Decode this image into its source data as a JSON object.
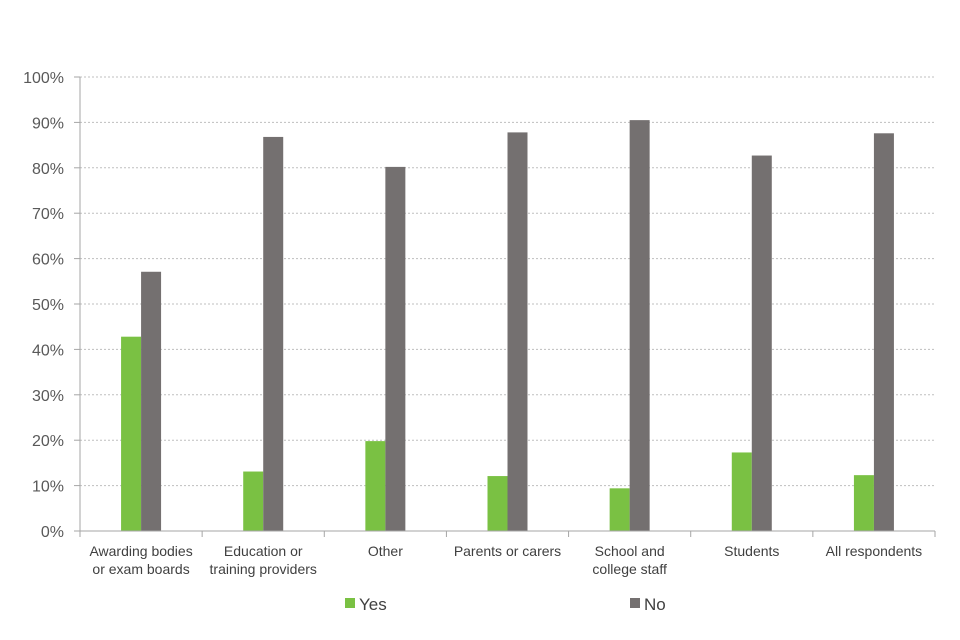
{
  "chart_data": {
    "type": "bar",
    "categories": [
      [
        "Awarding bodies",
        "or exam boards"
      ],
      [
        "Education or",
        "training providers"
      ],
      [
        "Other"
      ],
      [
        "Parents or carers"
      ],
      [
        "School and",
        "college staff"
      ],
      [
        "Students"
      ],
      [
        "All respondents"
      ]
    ],
    "series": [
      {
        "name": "Yes",
        "color": "#7ac143",
        "values": [
          42.8,
          13.1,
          19.8,
          12.1,
          9.4,
          17.3,
          12.3
        ]
      },
      {
        "name": "No",
        "color": "#747070",
        "values": [
          57.1,
          86.8,
          80.2,
          87.8,
          90.5,
          82.7,
          87.6
        ]
      }
    ],
    "ylim": [
      0,
      100
    ],
    "yticks": [
      "0%",
      "10%",
      "20%",
      "30%",
      "40%",
      "50%",
      "60%",
      "70%",
      "80%",
      "90%",
      "100%"
    ],
    "grid": true,
    "legend_position": "bottom"
  }
}
